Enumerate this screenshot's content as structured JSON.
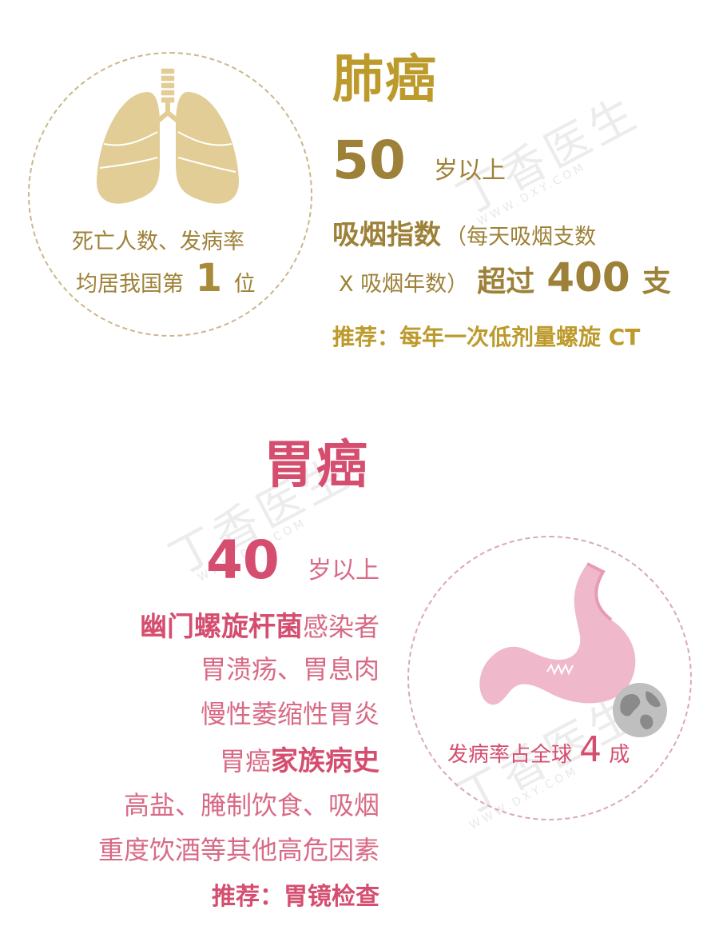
{
  "lung": {
    "title": "肺癌",
    "circle_line1": "死亡人数、发病率",
    "circle_line2_prefix": "均居我国第",
    "circle_rank": "1",
    "circle_line2_suffix": "位",
    "age_num": "50",
    "age_text": "岁以上",
    "smoke_index_label": "吸烟指数",
    "smoke_index_note1": "（每天吸烟支数",
    "smoke_index_note2": "X 吸烟年数）",
    "over_label": "超过",
    "over_num": "400",
    "over_unit": "支",
    "recommend": "推荐：每年一次低剂量螺旋 CT"
  },
  "stomach": {
    "title": "胃癌",
    "age_num": "40",
    "age_text": "岁以上",
    "line_hp_bold": "幽门螺旋杆菌",
    "line_hp_rest": "感染者",
    "line2": "胃溃疡、胃息肉",
    "line3": "慢性萎缩性胃炎",
    "line4_prefix": "胃癌",
    "line4_bold": "家族病史",
    "line5": "高盐、腌制饮食、吸烟",
    "line6": "重度饮酒等其他高危因素",
    "recommend": "推荐：胃镜检查",
    "circle_text": "发病率占全球",
    "circle_num": "4",
    "circle_unit": "成"
  },
  "watermark": {
    "text": "丁香医生",
    "sub": "WWW.DXY.COM"
  },
  "colors": {
    "gold": "#bd9a2c",
    "pink": "#d54d6f",
    "lung_fill": "#e2cd96",
    "stomach_fill": "#efb9cb"
  }
}
